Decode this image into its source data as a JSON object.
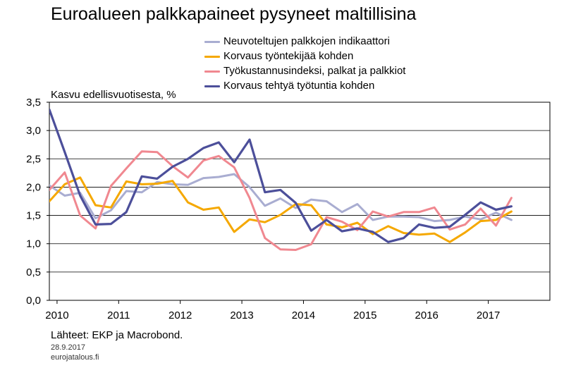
{
  "title": "Euroalueen palkkapaineet pysyneet maltillisina",
  "source": "Lähteet: EKP ja Macrobond.",
  "date": "28.9.2017",
  "site": "eurojatalous.fi",
  "chart_data": {
    "type": "line",
    "title": "Euroalueen palkkapaineet pysyneet maltillisina",
    "ylabel": "Kasvu edellisvuotisesta, %",
    "xlabel": "",
    "ylim": [
      0,
      3.5
    ],
    "yticks": [
      "0,0",
      "0,5",
      "1,0",
      "1,5",
      "2,0",
      "2,5",
      "3,0",
      "3,5"
    ],
    "xlim": [
      2010,
      2018.125
    ],
    "xticks": [
      "2010",
      "2011",
      "2012",
      "2013",
      "2014",
      "2015",
      "2016",
      "2017"
    ],
    "grid": "horizontal",
    "legend_position": "top",
    "series": [
      {
        "name": "Neuvoteltujen palkkojen indikaattori",
        "color": "#a9add1",
        "x": [
          2010.0,
          2010.25,
          2010.5,
          2010.75,
          2011.0,
          2011.25,
          2011.5,
          2011.75,
          2012.0,
          2012.25,
          2012.5,
          2012.75,
          2013.0,
          2013.25,
          2013.5,
          2013.75,
          2014.0,
          2014.25,
          2014.5,
          2014.75,
          2015.0,
          2015.25,
          2015.5,
          2015.75,
          2016.0,
          2016.25,
          2016.5,
          2016.75,
          2017.0,
          2017.25,
          2017.5
        ],
        "values": [
          2.03,
          1.85,
          1.9,
          1.45,
          1.59,
          1.93,
          1.91,
          2.09,
          2.05,
          2.04,
          2.16,
          2.18,
          2.23,
          2.0,
          1.67,
          1.8,
          1.63,
          1.78,
          1.75,
          1.56,
          1.7,
          1.42,
          1.48,
          1.48,
          1.47,
          1.4,
          1.42,
          1.48,
          1.43,
          1.55,
          1.42
        ]
      },
      {
        "name": "Korvaus työntekijää kohden",
        "color": "#f5a800",
        "x": [
          2010.0,
          2010.25,
          2010.5,
          2010.75,
          2011.0,
          2011.25,
          2011.5,
          2011.75,
          2012.0,
          2012.25,
          2012.5,
          2012.75,
          2013.0,
          2013.25,
          2013.5,
          2013.75,
          2014.0,
          2014.25,
          2014.5,
          2014.75,
          2015.0,
          2015.25,
          2015.5,
          2015.75,
          2016.0,
          2016.25,
          2016.5,
          2016.75,
          2017.0,
          2017.25,
          2017.5
        ],
        "values": [
          1.75,
          2.05,
          2.17,
          1.68,
          1.64,
          2.1,
          2.05,
          2.06,
          2.11,
          1.73,
          1.6,
          1.64,
          1.21,
          1.43,
          1.38,
          1.51,
          1.7,
          1.68,
          1.34,
          1.29,
          1.37,
          1.17,
          1.31,
          1.19,
          1.16,
          1.18,
          1.03,
          1.2,
          1.4,
          1.42,
          1.57
        ]
      },
      {
        "name": "Työkustannusindeksi, palkat ja palkkiot",
        "color": "#f08890",
        "x": [
          2010.0,
          2010.25,
          2010.5,
          2010.75,
          2011.0,
          2011.25,
          2011.5,
          2011.75,
          2012.0,
          2012.25,
          2012.5,
          2012.75,
          2013.0,
          2013.25,
          2013.5,
          2013.75,
          2014.0,
          2014.25,
          2014.5,
          2014.75,
          2015.0,
          2015.25,
          2015.5,
          2015.75,
          2016.0,
          2016.25,
          2016.5,
          2016.75,
          2017.0,
          2017.25,
          2017.5
        ],
        "values": [
          1.95,
          2.26,
          1.5,
          1.27,
          2.02,
          2.33,
          2.63,
          2.62,
          2.37,
          2.17,
          2.47,
          2.55,
          2.35,
          1.81,
          1.1,
          0.9,
          0.89,
          0.99,
          1.47,
          1.39,
          1.24,
          1.57,
          1.48,
          1.56,
          1.56,
          1.64,
          1.25,
          1.34,
          1.62,
          1.32,
          1.81
        ]
      },
      {
        "name": "Korvaus tehtyä työtuntia kohden",
        "color": "#4c4f9a",
        "x": [
          2010.0,
          2010.25,
          2010.5,
          2010.75,
          2011.0,
          2011.25,
          2011.5,
          2011.75,
          2012.0,
          2012.25,
          2012.5,
          2012.75,
          2013.0,
          2013.25,
          2013.5,
          2013.75,
          2014.0,
          2014.25,
          2014.5,
          2014.75,
          2015.0,
          2015.25,
          2015.5,
          2015.75,
          2016.0,
          2016.25,
          2016.5,
          2016.75,
          2017.0,
          2017.25,
          2017.5
        ],
        "values": [
          3.37,
          2.62,
          1.85,
          1.34,
          1.35,
          1.56,
          2.19,
          2.15,
          2.36,
          2.5,
          2.69,
          2.79,
          2.44,
          2.84,
          1.91,
          1.95,
          1.72,
          1.23,
          1.42,
          1.22,
          1.27,
          1.21,
          1.03,
          1.1,
          1.34,
          1.28,
          1.3,
          1.51,
          1.73,
          1.6,
          1.66
        ]
      }
    ]
  }
}
